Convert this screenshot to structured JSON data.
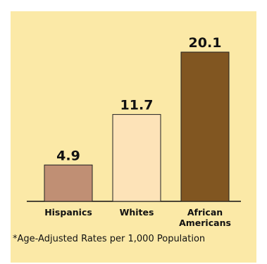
{
  "chart_data": {
    "type": "bar",
    "categories": [
      [
        "Hispanics"
      ],
      [
        "Whites"
      ],
      [
        "African",
        "Americans"
      ]
    ],
    "values": [
      4.9,
      11.7,
      20.1
    ],
    "value_labels": [
      "4.9",
      "11.7",
      "20.1"
    ],
    "colors": [
      "#c08f74",
      "#fde3b8",
      "#815621"
    ],
    "ylim": [
      0,
      20.1
    ],
    "grid": false,
    "legend": "none"
  },
  "footnote": "*Age-Adjusted Rates per 1,000 Population"
}
